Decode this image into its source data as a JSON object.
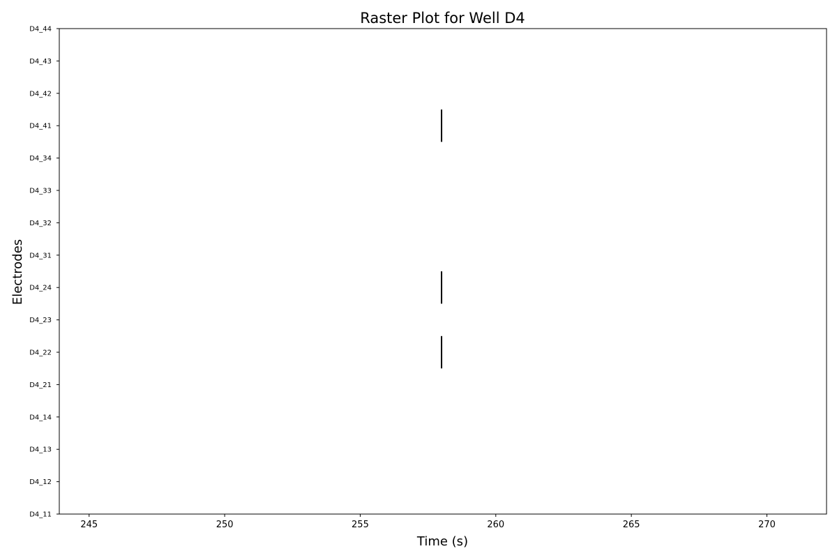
{
  "chart_data": {
    "type": "raster",
    "title": "Raster Plot for Well D4",
    "xlabel": "Time (s)",
    "ylabel": "Electrodes",
    "xlim": [
      243.9,
      272.2
    ],
    "xticks": [
      245,
      250,
      255,
      260,
      265,
      270
    ],
    "electrodes": [
      "D4_11",
      "D4_12",
      "D4_13",
      "D4_14",
      "D4_21",
      "D4_22",
      "D4_23",
      "D4_24",
      "D4_31",
      "D4_32",
      "D4_33",
      "D4_34",
      "D4_41",
      "D4_42",
      "D4_43",
      "D4_44"
    ],
    "spikes": [
      {
        "electrode": "D4_41",
        "time": 258.0
      },
      {
        "electrode": "D4_24",
        "time": 258.0
      },
      {
        "electrode": "D4_22",
        "time": 258.0
      }
    ],
    "grid": false,
    "spike_color": "#000000"
  }
}
